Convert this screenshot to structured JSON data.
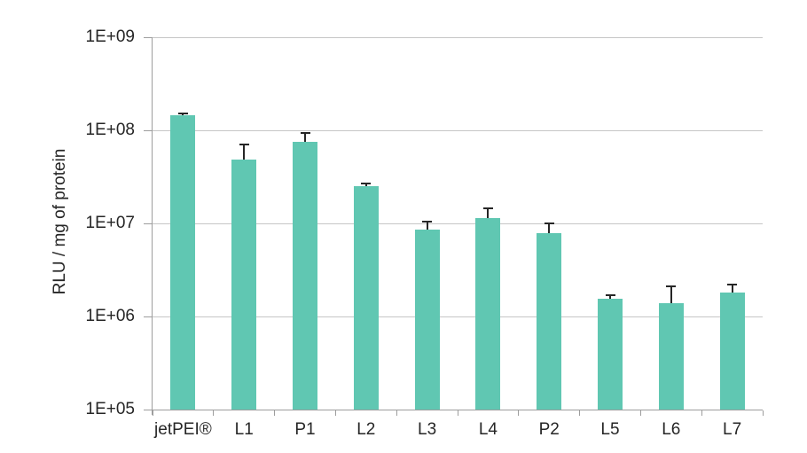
{
  "chart_data": {
    "type": "bar",
    "title": "",
    "xlabel": "",
    "ylabel": "RLU / mg of protein",
    "y_scale": "log",
    "ylim": [
      100000.0,
      1000000000.0
    ],
    "y_ticks": [
      "1E+05",
      "1E+06",
      "1E+07",
      "1E+08",
      "1E+09"
    ],
    "categories": [
      "jetPEI®",
      "L1",
      "P1",
      "L2",
      "L3",
      "L4",
      "P2",
      "L5",
      "L6",
      "L7"
    ],
    "values": [
      145000000.0,
      48000000.0,
      75000000.0,
      25000000.0,
      8600000.0,
      11500000.0,
      7900000.0,
      1550000.0,
      1400000.0,
      1800000.0
    ],
    "error_plus": [
      8000000.0,
      22000000.0,
      18000000.0,
      2000000.0,
      1900000.0,
      3000000.0,
      2000000.0,
      150000.0,
      700000.0,
      400000.0
    ],
    "grid": true,
    "legend": false,
    "colors": {
      "bar_fill": "#60C7B2",
      "error_bar": "#262626",
      "gridline": "#C6C6C6",
      "axis": "#9D9D9D",
      "text": "#262626",
      "background": "#FFFFFF"
    }
  }
}
